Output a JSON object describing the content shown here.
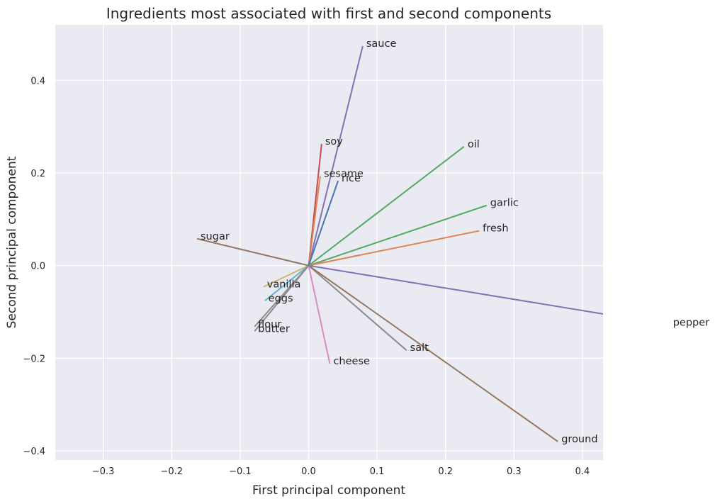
{
  "chart_data": {
    "type": "line",
    "title": "Ingredients most associated with first and second components",
    "xlabel": "First principal component",
    "ylabel": "Second principal component",
    "xlim": [
      -0.37,
      0.43
    ],
    "ylim": [
      -0.42,
      0.52
    ],
    "xticks": [
      -0.3,
      -0.2,
      -0.1,
      0.0,
      0.1,
      0.2,
      0.3,
      0.4
    ],
    "yticks": [
      -0.4,
      -0.2,
      0.0,
      0.2,
      0.4
    ],
    "xtick_labels": [
      "−0.3",
      "−0.2",
      "−0.1",
      "0.0",
      "0.1",
      "0.2",
      "0.3",
      "0.4"
    ],
    "ytick_labels": [
      "−0.4",
      "−0.2",
      "0.0",
      "0.2",
      "0.4"
    ],
    "grid": true,
    "background": "#eaeaf2",
    "series": [
      {
        "name": "sauce",
        "x": 0.079,
        "y": 0.474,
        "color": "#8172b3"
      },
      {
        "name": "soy",
        "x": 0.019,
        "y": 0.263,
        "color": "#c44e52"
      },
      {
        "name": "oil",
        "x": 0.227,
        "y": 0.257,
        "color": "#55a868"
      },
      {
        "name": "sesame",
        "x": 0.017,
        "y": 0.193,
        "color": "#dd8452"
      },
      {
        "name": "rice",
        "x": 0.043,
        "y": 0.183,
        "color": "#4c72b0"
      },
      {
        "name": "garlic",
        "x": 0.26,
        "y": 0.13,
        "color": "#55a868"
      },
      {
        "name": "fresh",
        "x": 0.249,
        "y": 0.075,
        "color": "#dd8452"
      },
      {
        "name": "sugar",
        "x": -0.163,
        "y": 0.058,
        "color": "#937860"
      },
      {
        "name": "vanilla",
        "x": -0.066,
        "y": -0.046,
        "color": "#ccb974"
      },
      {
        "name": "eggs",
        "x": -0.064,
        "y": -0.076,
        "color": "#64b5cd"
      },
      {
        "name": "flour",
        "x": -0.079,
        "y": -0.132,
        "color": "#8c8c8c"
      },
      {
        "name": "butter",
        "x": -0.079,
        "y": -0.142,
        "color": "#8c8c8c"
      },
      {
        "name": "pepper",
        "x": 0.527,
        "y": -0.128,
        "color": "#8172b3"
      },
      {
        "name": "salt",
        "x": 0.143,
        "y": -0.183,
        "color": "#8c8c8c"
      },
      {
        "name": "cheese",
        "x": 0.031,
        "y": -0.212,
        "color": "#da8bc3"
      },
      {
        "name": "ground",
        "x": 0.364,
        "y": -0.38,
        "color": "#937860"
      }
    ]
  }
}
